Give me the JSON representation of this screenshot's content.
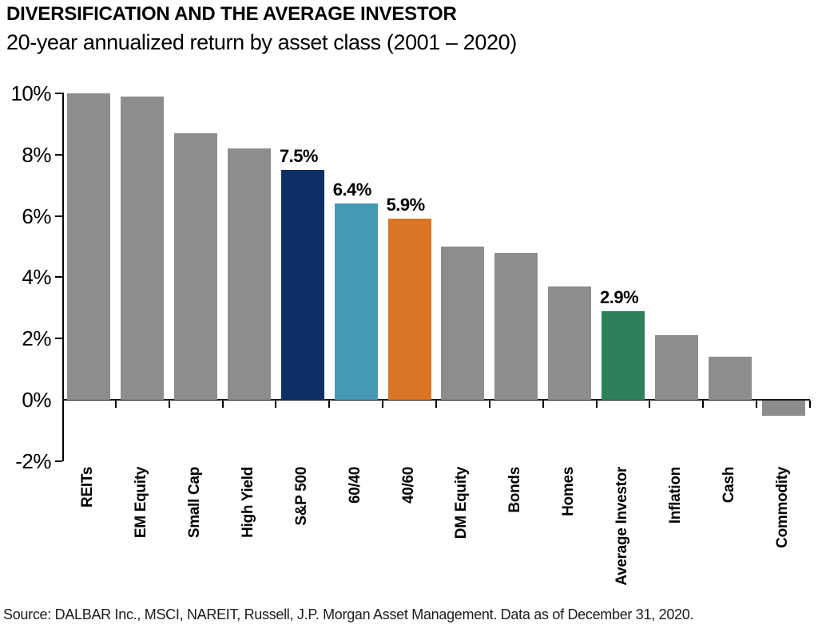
{
  "header": {
    "title": "DIVERSIFICATION AND THE AVERAGE INVESTOR",
    "subtitle": "20-year annualized return by asset class (2001 – 2020)"
  },
  "chart_data": {
    "type": "bar",
    "title": "DIVERSIFICATION AND THE AVERAGE INVESTOR",
    "subtitle": "20-year annualized return by asset class (2001 – 2020)",
    "categories": [
      "REITs",
      "EM Equity",
      "Small Cap",
      "High Yield",
      "S&P 500",
      "60/40",
      "40/60",
      "DM Equity",
      "Bonds",
      "Homes",
      "Average Investor",
      "Inflation",
      "Cash",
      "Commodity"
    ],
    "values": [
      10.0,
      9.9,
      8.7,
      8.2,
      7.5,
      6.4,
      5.9,
      5.0,
      4.8,
      3.7,
      2.9,
      2.1,
      1.4,
      -0.5
    ],
    "data_labels": [
      null,
      null,
      null,
      null,
      "7.5%",
      "6.4%",
      "5.9%",
      null,
      null,
      null,
      "2.9%",
      null,
      null,
      null
    ],
    "bar_colors": [
      "#8C8D8F",
      "#8C8D8F",
      "#8C8D8F",
      "#8C8D8F",
      "#0D2F66",
      "#4699B5",
      "#DB7524",
      "#8C8D8F",
      "#8C8D8F",
      "#8C8D8F",
      "#2C815B",
      "#8C8D8F",
      "#8C8D8F",
      "#8C8D8F"
    ],
    "xlabel": "",
    "ylabel": "",
    "ylim": [
      -2,
      10
    ],
    "yticks": [
      10,
      8,
      6,
      4,
      2,
      0,
      -2
    ],
    "ytick_labels": [
      "10%",
      "8%",
      "6%",
      "4%",
      "2%",
      "0%",
      "-2%"
    ],
    "grid": false,
    "legend": "none"
  },
  "colors": {
    "bar_default": "#8C8D8F",
    "highlight_navy": "#0D2F66",
    "highlight_teal": "#4699B5",
    "highlight_orange": "#DB7524",
    "highlight_green": "#2C815B",
    "axis": "#000000",
    "text": "#000000"
  },
  "footer": {
    "source": "Source: DALBAR Inc., MSCI, NAREIT, Russell, J.P. Morgan Asset Management. Data as of December 31, 2020."
  }
}
